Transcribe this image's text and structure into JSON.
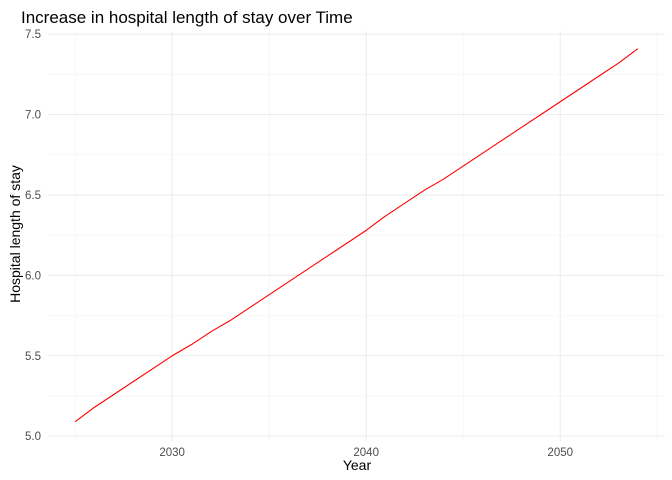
{
  "chart_data": {
    "type": "line",
    "title": "Increase in hospital length of stay over Time",
    "xlabel": "Year",
    "ylabel": "Hospital length of stay",
    "xlim": [
      2023.6,
      2055.4
    ],
    "ylim": [
      4.97,
      7.52
    ],
    "x_ticks": [
      2030,
      2040,
      2050
    ],
    "x_tick_labels": [
      "2030",
      "2040",
      "2050"
    ],
    "y_ticks": [
      5.0,
      5.5,
      6.0,
      6.5,
      7.0,
      7.5
    ],
    "y_tick_labels": [
      "5.0",
      "5.5",
      "6.0",
      "6.5",
      "7.0",
      "7.5"
    ],
    "grid": true,
    "legend": "none",
    "series": [
      {
        "color": "#ff0000",
        "x": [
          2025,
          2026,
          2027,
          2028,
          2029,
          2030,
          2031,
          2032,
          2033,
          2034,
          2035,
          2036,
          2037,
          2038,
          2039,
          2040,
          2041,
          2042,
          2043,
          2044,
          2045,
          2046,
          2047,
          2048,
          2049,
          2050,
          2051,
          2052,
          2053,
          2054
        ],
        "y": [
          5.09,
          5.18,
          5.26,
          5.34,
          5.42,
          5.5,
          5.57,
          5.65,
          5.72,
          5.8,
          5.88,
          5.96,
          6.04,
          6.12,
          6.2,
          6.28,
          6.37,
          6.45,
          6.53,
          6.6,
          6.68,
          6.76,
          6.84,
          6.92,
          7.0,
          7.08,
          7.16,
          7.24,
          7.32,
          7.41
        ]
      }
    ]
  }
}
